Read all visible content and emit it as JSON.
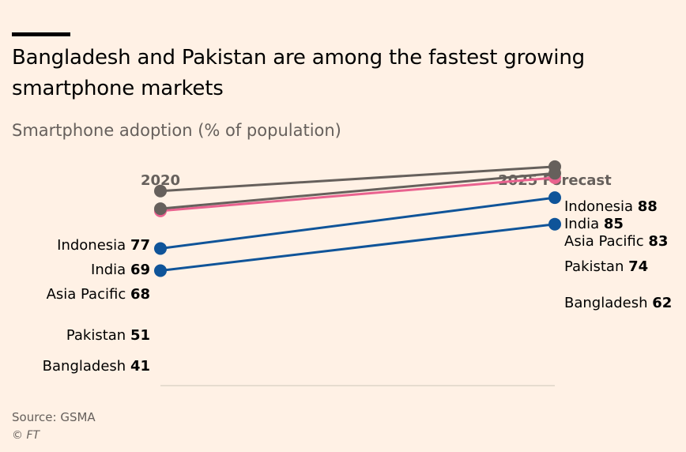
{
  "header": {
    "title": "Bangladesh and Pakistan are among the fastest growing smartphone markets",
    "subtitle": "Smartphone adoption (% of population)"
  },
  "footer": {
    "source": "Source: GSMA",
    "credit": "© FT"
  },
  "colors": {
    "background": "#fff1e5",
    "grey": "#66605c",
    "pink": "#e9628f",
    "blue": "#0f5499"
  },
  "chart_data": {
    "type": "line",
    "chart_style": "slope",
    "title": "Bangladesh and Pakistan are among the fastest growing smartphone markets",
    "subtitle": "Smartphone adoption (% of population)",
    "categories": [
      "2020",
      "2025 Forecast"
    ],
    "series": [
      {
        "name": "Indonesia",
        "values": [
          77,
          88
        ],
        "color": "#66605c"
      },
      {
        "name": "India",
        "values": [
          69,
          85
        ],
        "color": "#66605c"
      },
      {
        "name": "Asia Pacific",
        "values": [
          68,
          83
        ],
        "color": "#e9628f"
      },
      {
        "name": "Pakistan",
        "values": [
          51,
          74
        ],
        "color": "#0f5499"
      },
      {
        "name": "Bangladesh",
        "values": [
          41,
          62
        ],
        "color": "#0f5499"
      }
    ],
    "grid": false,
    "legend": "none (direct labels)"
  }
}
